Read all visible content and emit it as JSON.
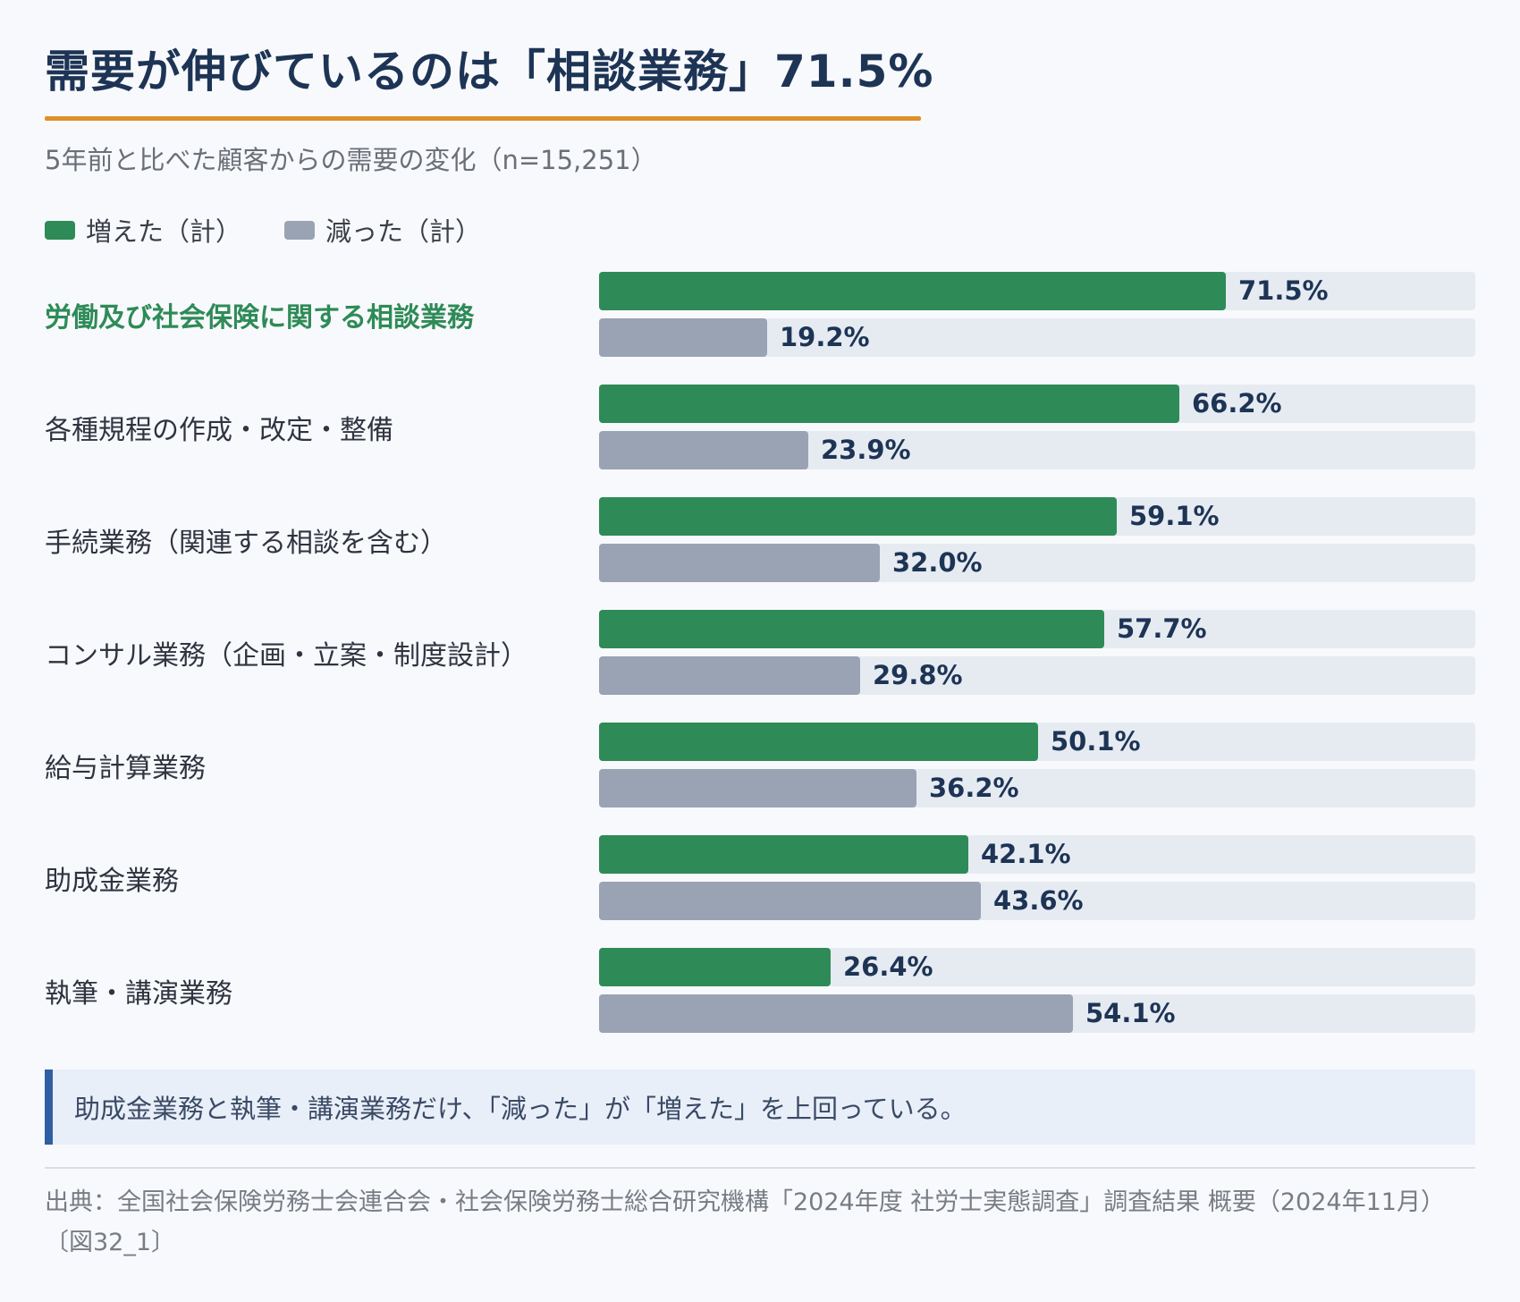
{
  "title": "需要が伸びているのは「相談業務」71.5%",
  "subtitle": "5年前と比べた顧客からの需要の変化（n=15,251）",
  "colors": {
    "increase": "#2e8b57",
    "decrease": "#9aa3b4",
    "track": "#e6ebf2",
    "accent_rule": "#e0902a",
    "highlight_label": "#2e8b57"
  },
  "chart_data": {
    "type": "bar",
    "orientation": "horizontal",
    "categories": [
      "労働及び社会保険に関する相談業務",
      "各種規程の作成・改定・整備",
      "手続業務（関連する相談を含む）",
      "コンサル業務（企画・立案・制度設計）",
      "給与計算業務",
      "助成金業務",
      "執筆・講演業務"
    ],
    "highlighted_category_index": 0,
    "series": [
      {
        "name": "増えた（計）",
        "color": "#2e8b57",
        "values": [
          71.5,
          66.2,
          59.1,
          57.7,
          50.1,
          42.1,
          26.4
        ],
        "labels": [
          "71.5%",
          "66.2%",
          "59.1%",
          "57.7%",
          "50.1%",
          "42.1%",
          "26.4%"
        ]
      },
      {
        "name": "減った（計）",
        "color": "#9aa3b4",
        "values": [
          19.2,
          23.9,
          32.0,
          29.8,
          36.2,
          43.6,
          54.1
        ],
        "labels": [
          "19.2%",
          "23.9%",
          "32.0%",
          "29.8%",
          "36.2%",
          "43.6%",
          "54.1%"
        ]
      }
    ],
    "xlim": [
      0,
      100
    ],
    "unit": "%",
    "legend_position": "top-left",
    "grid": false
  },
  "note": "助成金業務と執筆・講演業務だけ、「減った」が「増えた」を上回っている。",
  "source": "出典：全国社会保険労務士会連合会・社会保険労務士総合研究機構「2024年度 社労士実態調査」調査結果 概要（2024年11月）〔図32_1〕"
}
